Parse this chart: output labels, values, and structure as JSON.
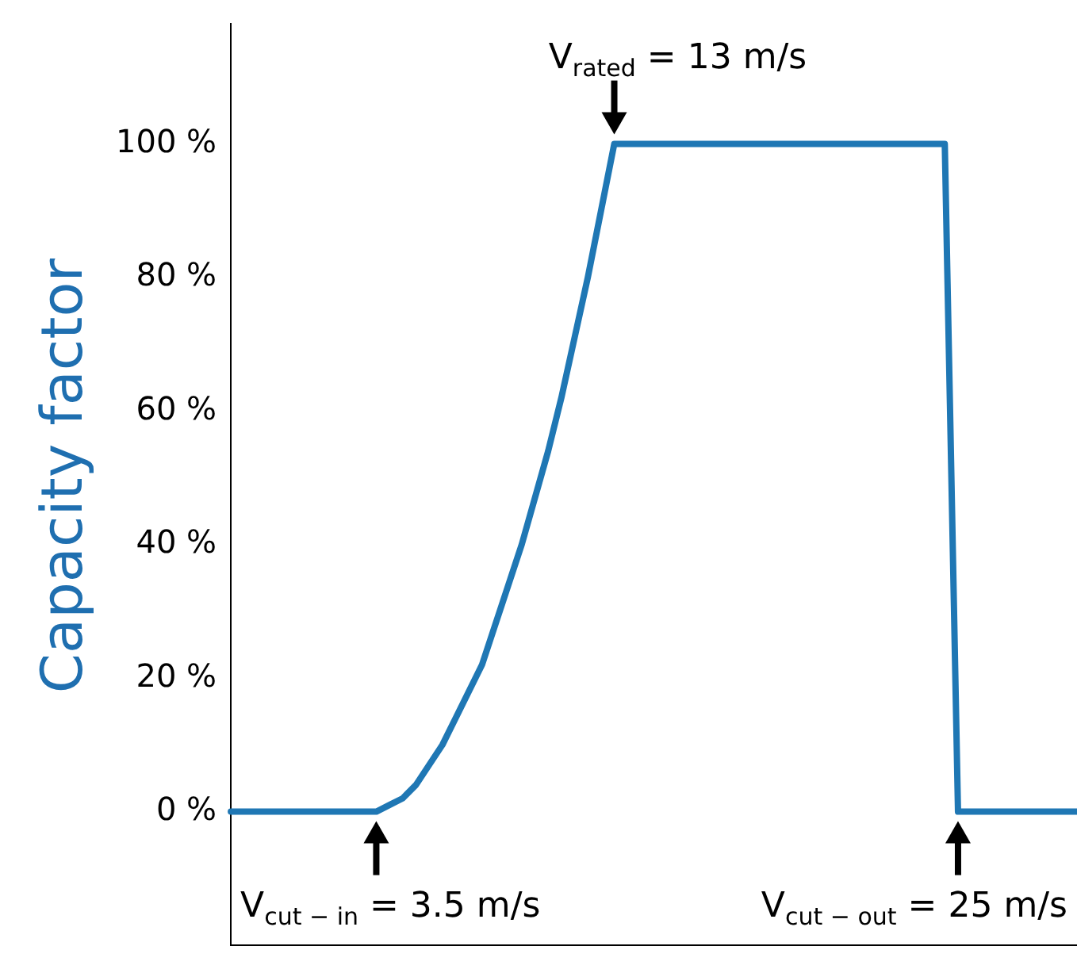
{
  "chart_data": {
    "type": "line",
    "ylabel": "Capacity factor",
    "categories": [
      null,
      null,
      null,
      null,
      null,
      null,
      null,
      null,
      null,
      null,
      null,
      null,
      null,
      null,
      null,
      null,
      null,
      null,
      null,
      null,
      null,
      null,
      null,
      null,
      null,
      null,
      null,
      null,
      null,
      null,
      null,
      null,
      null,
      null,
      null,
      null,
      null,
      null,
      null,
      null,
      null,
      null,
      null,
      null,
      null,
      null,
      null,
      null,
      null,
      null,
      null,
      null,
      null,
      null,
      null,
      null,
      null,
      null,
      null,
      null,
      null,
      null,
      null,
      null,
      null
    ],
    "series": [
      {
        "color": "#1f77b4",
        "values": [
          0,
          0,
          0,
          0,
          0,
          0,
          0,
          0,
          0,
          0,
          0,
          0,
          1,
          2,
          4,
          7,
          10,
          14,
          18,
          22,
          28,
          34,
          40,
          47,
          54,
          62,
          71,
          80,
          90,
          100,
          100,
          100,
          100,
          100,
          100,
          100,
          100,
          100,
          100,
          100,
          100,
          100,
          100,
          100,
          100,
          100,
          100,
          100,
          100,
          100,
          100,
          100,
          100,
          100,
          100,
          0,
          0,
          0,
          0,
          0,
          0,
          0,
          0,
          0,
          0
        ]
      }
    ],
    "ylim": [
      -20,
      118
    ],
    "yticks": [
      {
        "value": 0,
        "label": "0 %"
      },
      {
        "value": 20,
        "label": "20 %"
      },
      {
        "value": 40,
        "label": "40 %"
      },
      {
        "value": 60,
        "label": "60 %"
      },
      {
        "value": 80,
        "label": "80 %"
      },
      {
        "value": 100,
        "label": "100 %"
      }
    ],
    "tick_labels": "y",
    "grid": false,
    "legend": false,
    "marker": "none",
    "line_style": "solid",
    "annotations": [
      {
        "text": "V$_{cut − in}$ = 3.5 m/s",
        "y": 0
      },
      {
        "text": "V$_{rated}$ = 13 m/s",
        "y": 100
      },
      "V$_{cut − out}$ = 25 m/s"
    ]
  }
}
